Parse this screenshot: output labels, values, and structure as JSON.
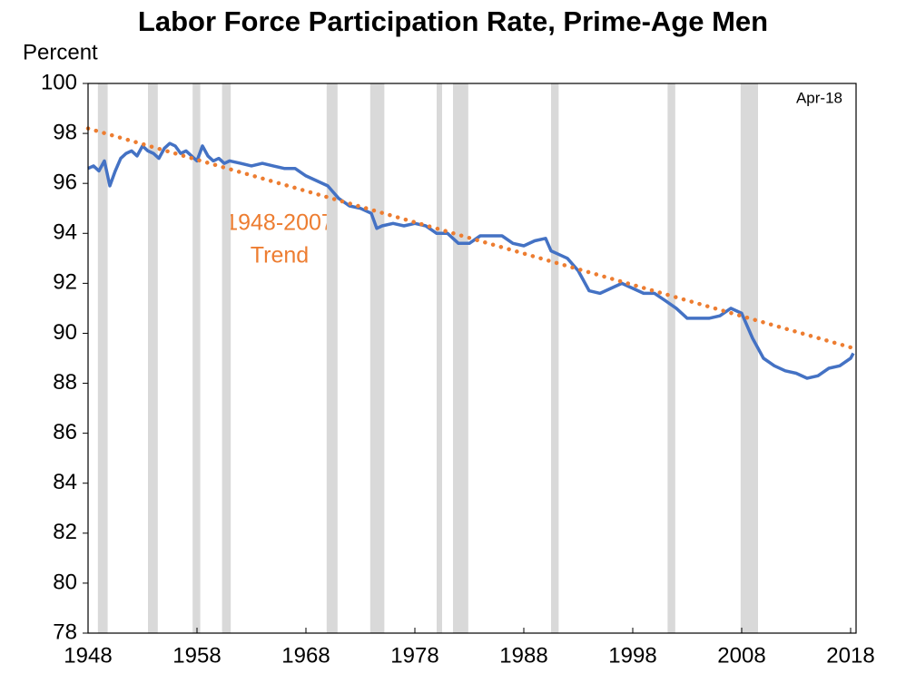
{
  "chart_data": {
    "type": "line",
    "title": "Labor Force Participation Rate, Prime-Age Men",
    "y_label": "Percent",
    "date_note": "Apr-18",
    "annotation": [
      "1948-2007",
      "Trend"
    ],
    "xlim": [
      1948,
      2018.5
    ],
    "xticks": [
      1948,
      1958,
      1968,
      1978,
      1988,
      1998,
      2008,
      2018
    ],
    "ylim": [
      78,
      100
    ],
    "yticks": [
      78,
      80,
      82,
      84,
      86,
      88,
      90,
      92,
      94,
      96,
      98,
      100
    ],
    "recessions": [
      [
        1948.9,
        1949.8
      ],
      [
        1953.5,
        1954.4
      ],
      [
        1957.6,
        1958.3
      ],
      [
        1960.3,
        1961.1
      ],
      [
        1969.9,
        1970.9
      ],
      [
        1973.9,
        1975.2
      ],
      [
        1980.0,
        1980.5
      ],
      [
        1981.5,
        1982.9
      ],
      [
        1990.5,
        1991.2
      ],
      [
        2001.2,
        2001.9
      ],
      [
        2007.9,
        2009.5
      ]
    ],
    "recession_color": "#d9d9d9",
    "series": [
      {
        "color": "#4472c4",
        "style": "solid",
        "x": [
          1948,
          1948.5,
          1949,
          1949.5,
          1950,
          1950.5,
          1951,
          1951.5,
          1952,
          1952.5,
          1953,
          1953.5,
          1954,
          1954.5,
          1955,
          1955.5,
          1956,
          1956.5,
          1957,
          1957.5,
          1958,
          1958.5,
          1959,
          1959.5,
          1960,
          1960.5,
          1961,
          1962,
          1963,
          1964,
          1965,
          1966,
          1967,
          1968,
          1969,
          1970,
          1971,
          1972,
          1973,
          1974,
          1974.5,
          1975,
          1976,
          1977,
          1978,
          1979,
          1980,
          1981,
          1982,
          1983,
          1984,
          1985,
          1986,
          1987,
          1988,
          1989,
          1990,
          1990.5,
          1991,
          1992,
          1993,
          1994,
          1995,
          1996,
          1997,
          1998,
          1999,
          2000,
          2001,
          2002,
          2003,
          2004,
          2005,
          2006,
          2007,
          2008,
          2009,
          2010,
          2011,
          2012,
          2013,
          2014,
          2015,
          2016,
          2017,
          2018,
          2018.25
        ],
        "values": [
          96.6,
          96.7,
          96.5,
          96.9,
          95.9,
          96.5,
          97.0,
          97.2,
          97.3,
          97.1,
          97.5,
          97.3,
          97.2,
          97.0,
          97.4,
          97.6,
          97.5,
          97.2,
          97.3,
          97.1,
          96.9,
          97.5,
          97.1,
          96.9,
          97.0,
          96.8,
          96.9,
          96.8,
          96.7,
          96.8,
          96.7,
          96.6,
          96.6,
          96.3,
          96.1,
          95.9,
          95.4,
          95.1,
          95.0,
          94.8,
          94.2,
          94.3,
          94.4,
          94.3,
          94.4,
          94.3,
          94.0,
          94.0,
          93.6,
          93.6,
          93.9,
          93.9,
          93.9,
          93.6,
          93.5,
          93.7,
          93.8,
          93.3,
          93.2,
          93.0,
          92.5,
          91.7,
          91.6,
          91.8,
          92.0,
          91.8,
          91.6,
          91.6,
          91.3,
          91.0,
          90.6,
          90.6,
          90.6,
          90.7,
          91.0,
          90.8,
          89.8,
          89.0,
          88.7,
          88.5,
          88.4,
          88.2,
          88.3,
          88.6,
          88.7,
          89.0,
          89.2
        ]
      },
      {
        "color": "#ed7d31",
        "style": "dotted",
        "x": [
          1948,
          2018.3
        ],
        "values": [
          98.2,
          89.4
        ]
      }
    ]
  }
}
